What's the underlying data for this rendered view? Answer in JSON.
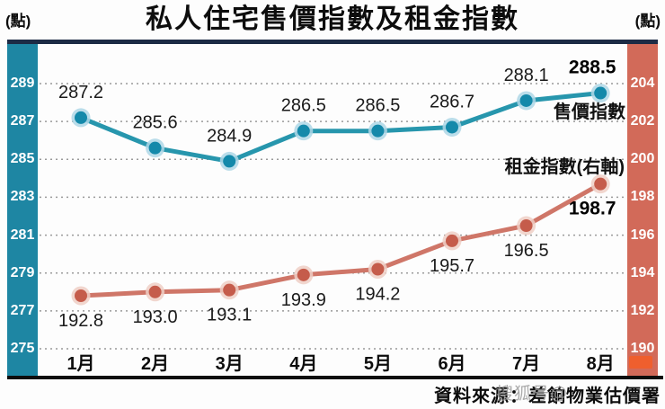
{
  "header": {
    "title": "私人住宅售價指數及租金指數",
    "left_unit": "(點)",
    "right_unit": "(點)"
  },
  "chart_data": {
    "type": "line",
    "categories": [
      "1月",
      "2月",
      "3月",
      "4月",
      "5月",
      "6月",
      "7月",
      "8月"
    ],
    "series": [
      {
        "name": "售價指數",
        "axis": "left",
        "values": [
          287.2,
          285.6,
          284.9,
          286.5,
          286.5,
          286.7,
          288.1,
          288.5
        ],
        "labels": [
          "287.2",
          "285.6",
          "284.9",
          "286.5",
          "286.5",
          "286.7",
          "288.1",
          "288.5"
        ],
        "line_color": "#2796ad",
        "marker_color": "#1489aa",
        "halo_color": "#aed7e6"
      },
      {
        "name": "租金指數(右軸)",
        "axis": "right",
        "values": [
          192.8,
          193.0,
          193.1,
          193.9,
          194.2,
          195.7,
          196.5,
          198.7
        ],
        "labels": [
          "192.8",
          "193.0",
          "193.1",
          "193.9",
          "194.2",
          "195.7",
          "196.5",
          "198.7"
        ],
        "line_color": "#cf7668",
        "marker_color": "#c55c4b",
        "halo_color": "#eecfc6"
      }
    ],
    "left_axis": {
      "ticks": [
        "289",
        "287",
        "285",
        "283",
        "281",
        "279",
        "277",
        "275"
      ],
      "range": [
        275,
        289
      ],
      "color": "#1e86a3"
    },
    "right_axis": {
      "ticks": [
        "204",
        "202",
        "200",
        "198",
        "196",
        "194",
        "192",
        "190"
      ],
      "range": [
        190,
        204
      ],
      "color": "#d26a59"
    },
    "grid": "horizontal-dotted",
    "legend_position": "inline-right"
  },
  "footer": {
    "source": "資料來源：差餉物業估價署",
    "watermark": "搜狐号@"
  }
}
